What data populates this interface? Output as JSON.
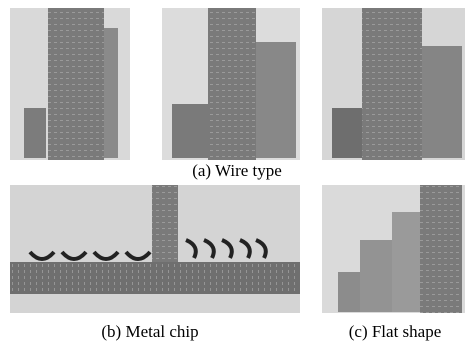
{
  "figure": {
    "captions": {
      "a": "(a) Wire type",
      "b": "(b) Metal chip",
      "c": "(c) Flat shape"
    }
  }
}
